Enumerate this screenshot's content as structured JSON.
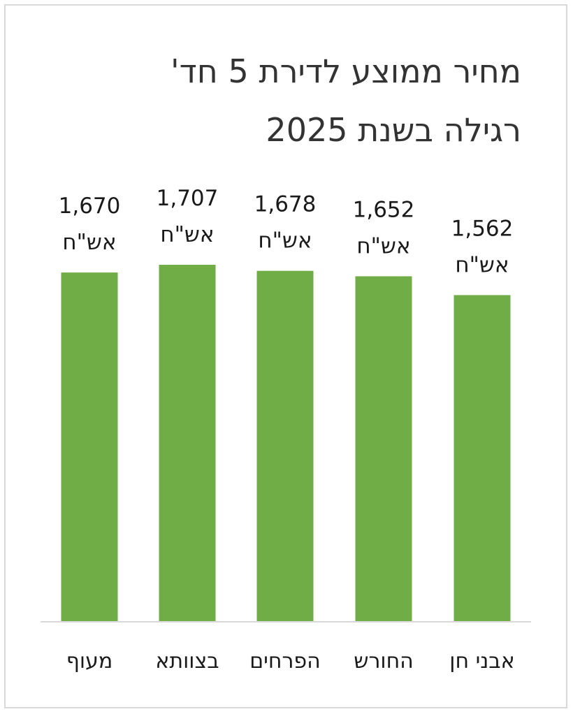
{
  "chart_data": {
    "type": "bar",
    "title_lines": [
      "מחיר ממוצע לדירת 5 חד'",
      "רגילה בשנת 2025"
    ],
    "categories": [
      "מעוף",
      "בצוותא",
      "הפרחים",
      "החורש",
      "אבני חן"
    ],
    "values": [
      1670,
      1707,
      1678,
      1652,
      1562
    ],
    "value_labels": [
      "1,670",
      "1,707",
      "1,678",
      "1,652",
      "1,562"
    ],
    "unit_label": "אש\"ח",
    "ylim": [
      0,
      1900
    ],
    "grid": false,
    "legend": "none",
    "bar_color": "#70ad47",
    "axis_color": "#d9d9d9"
  }
}
